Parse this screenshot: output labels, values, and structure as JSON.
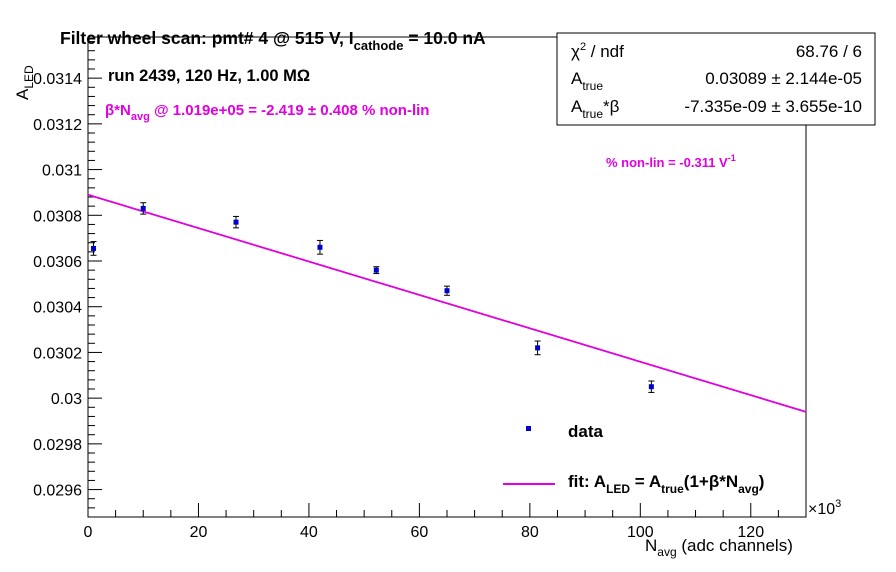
{
  "chart_data": {
    "type": "scatter",
    "title_main": "Filter wheel scan: pmt#   4 @   515 V, I",
    "title_sub": "cathode",
    "title_tail": " = 10.0 nA",
    "ylabel_main": "A",
    "ylabel_sub": "LED",
    "xlabel_main": "N",
    "xlabel_sub": "avg",
    "xlabel_tail": " (adc channels)",
    "x_exponent_base": "×10",
    "x_exponent_power": "3",
    "xlim": [
      0,
      130
    ],
    "ylim": [
      0.02948,
      0.03158
    ],
    "x_ticks": [
      0,
      20,
      40,
      60,
      80,
      100,
      120
    ],
    "y_ticks": [
      0.0296,
      0.0298,
      0.03,
      0.0302,
      0.0304,
      0.0306,
      0.0308,
      0.031,
      0.0312,
      0.0314
    ],
    "y_tick_labels": [
      "0.0296",
      "0.0298",
      "0.03",
      "0.0302",
      "0.0304",
      "0.0306",
      "0.0308",
      "0.031",
      "0.0312",
      "0.0314"
    ],
    "colors": {
      "data": "#0000cc",
      "fit": "#e000e0",
      "annotation": "#e000e0",
      "frame": "#000000"
    },
    "series": [
      {
        "name": "data",
        "points": [
          {
            "x": 1.0,
            "y": 0.030655,
            "err": 3e-05
          },
          {
            "x": 10.0,
            "y": 0.03083,
            "err": 2.5e-05
          },
          {
            "x": 26.8,
            "y": 0.03077,
            "err": 2.5e-05
          },
          {
            "x": 42.0,
            "y": 0.03066,
            "err": 3e-05
          },
          {
            "x": 52.2,
            "y": 0.03056,
            "err": 1.5e-05
          },
          {
            "x": 65.0,
            "y": 0.03047,
            "err": 2e-05
          },
          {
            "x": 81.4,
            "y": 0.03022,
            "err": 3e-05
          },
          {
            "x": 102.0,
            "y": 0.03005,
            "err": 2.5e-05
          }
        ]
      },
      {
        "name": "fit",
        "line": {
          "x": [
            0,
            130
          ],
          "y": [
            0.03089,
            0.02994
          ]
        }
      }
    ],
    "annotations": {
      "run": "run 2439, 120 Hz, 1.00 MΩ",
      "beta_main": "β*N",
      "beta_sub": "avg",
      "beta_tail": " @ 1.019e+05 = -2.419 ± 0.408 % non-lin",
      "nonlin": "% non-lin = -0.311 V",
      "nonlin_sup": "-1"
    },
    "stats_box": {
      "chi2_label": "χ",
      "chi2_sup": "2",
      "chi2_tail": " / ndf",
      "chi2_value": "68.76 / 6",
      "atrue_label": "A",
      "atrue_sub": "true",
      "atrue_value": "0.03089 ± 2.144e-05",
      "atrue_beta_label": "A",
      "atrue_beta_sub": "true",
      "atrue_beta_tail": "*β",
      "atrue_beta_value": "-7.335e-09 ± 3.655e-10"
    },
    "legend": {
      "data_label": "data",
      "fit_main": "fit: A",
      "fit_sub1": "LED",
      "fit_mid": " = A",
      "fit_sub2": "true",
      "fit_mid2": "(1+β*N",
      "fit_sub3": "avg",
      "fit_tail": ")"
    }
  }
}
